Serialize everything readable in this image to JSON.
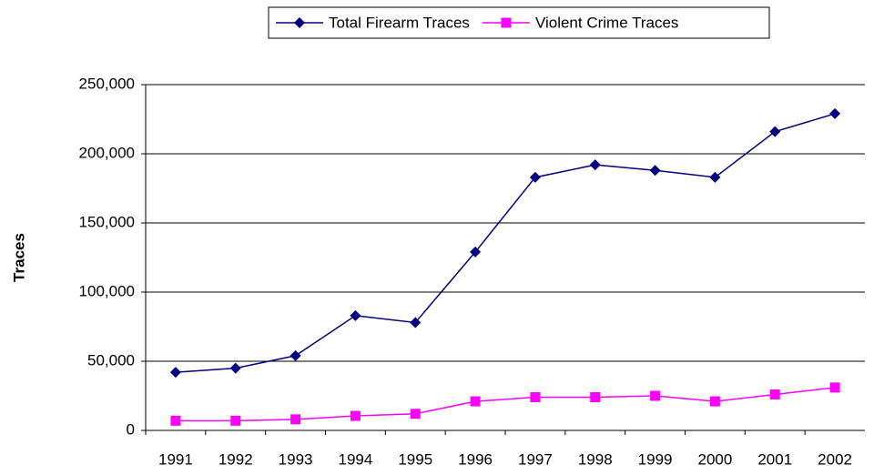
{
  "chart_data": {
    "type": "line",
    "y_label": "Traces",
    "categories": [
      "1991",
      "1992",
      "1993",
      "1994",
      "1995",
      "1996",
      "1997",
      "1998",
      "1999",
      "2000",
      "2001",
      "2002"
    ],
    "series": [
      {
        "name": "Total Firearm Traces",
        "color": "#000080",
        "marker": "diamond",
        "values": [
          42000,
          45000,
          54000,
          83000,
          78000,
          129000,
          183000,
          192000,
          188000,
          183000,
          216000,
          229000
        ]
      },
      {
        "name": "Violent Crime Traces",
        "color": "#ff00ff",
        "marker": "square",
        "values": [
          7000,
          7000,
          8000,
          10500,
          12000,
          21000,
          24000,
          24000,
          25000,
          21000,
          26000,
          31000
        ]
      }
    ],
    "ylim": [
      0,
      250000
    ],
    "yticks": [
      0,
      {
        "value": 50000,
        "label": "50,000"
      },
      {
        "value": 100000,
        "label": "100,000"
      },
      {
        "value": 150000,
        "label": "150,000"
      },
      {
        "value": 200000,
        "label": "200,000"
      },
      {
        "value": 250000,
        "label": "250,000"
      }
    ],
    "grid": true,
    "legend": "top"
  }
}
